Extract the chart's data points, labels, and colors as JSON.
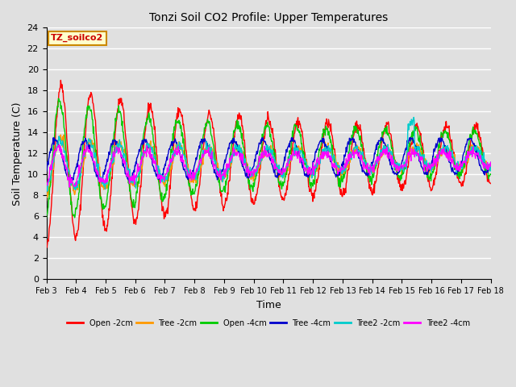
{
  "title": "Tonzi Soil CO2 Profile: Upper Temperatures",
  "xlabel": "Time",
  "ylabel": "Soil Temperature (C)",
  "ylim": [
    0,
    24
  ],
  "yticks": [
    0,
    2,
    4,
    6,
    8,
    10,
    12,
    14,
    16,
    18,
    20,
    22,
    24
  ],
  "xtick_labels": [
    "Feb 3",
    "Feb 4",
    "Feb 5",
    "Feb 6",
    "Feb 7",
    "Feb 8",
    "Feb 9",
    "Feb 10",
    "Feb 11",
    "Feb 12",
    "Feb 13",
    "Feb 14",
    "Feb 15",
    "Feb 16",
    "Feb 17",
    "Feb 18"
  ],
  "background_color": "#e0e0e0",
  "plot_bg_color": "#e0e0e0",
  "grid_color": "#ffffff",
  "label_box_color": "#ffffcc",
  "label_box_edge": "#cc8800",
  "label_text": "TZ_soilco2",
  "label_text_color": "#cc0000",
  "series": [
    {
      "name": "Open -2cm",
      "color": "#ff0000"
    },
    {
      "name": "Tree -2cm",
      "color": "#ff9900"
    },
    {
      "name": "Open -4cm",
      "color": "#00cc00"
    },
    {
      "name": "Tree -4cm",
      "color": "#0000cc"
    },
    {
      "name": "Tree2 -2cm",
      "color": "#00cccc"
    },
    {
      "name": "Tree2 -4cm",
      "color": "#ff00ff"
    }
  ]
}
